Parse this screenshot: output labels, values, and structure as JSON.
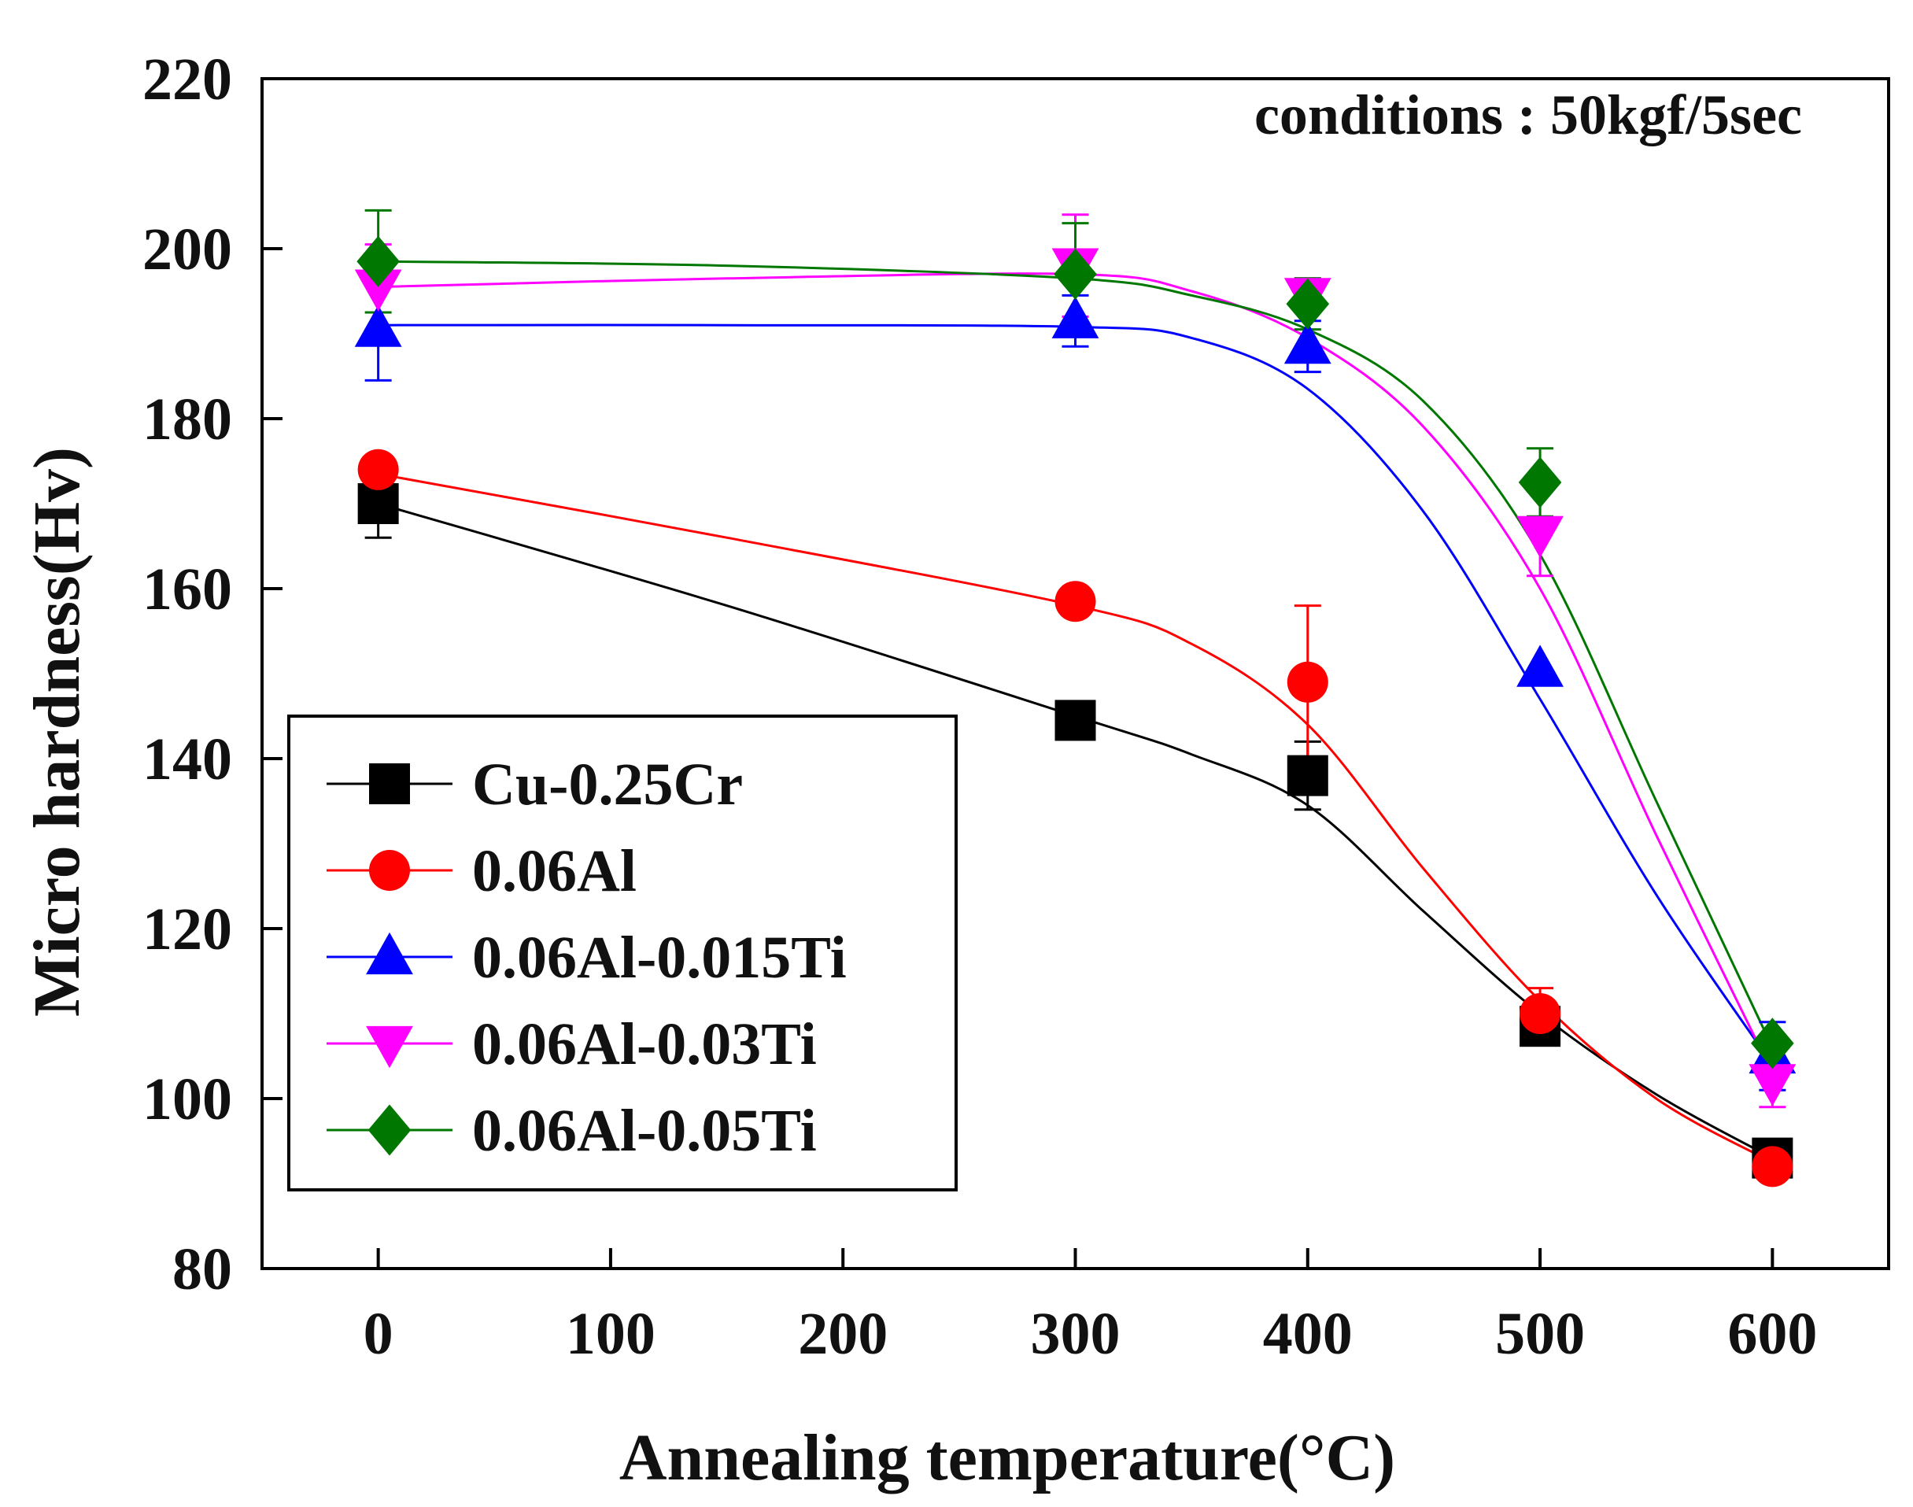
{
  "chart_data": {
    "type": "line",
    "title": "",
    "annotation": "conditions : 50kgf/5sec",
    "xlabel": "Annealing temperature(°C)",
    "ylabel": "Micro hardness(Hv)",
    "xlim": [
      -50,
      650
    ],
    "ylim": [
      80,
      220
    ],
    "x_ticks": [
      0,
      100,
      200,
      300,
      400,
      500,
      600
    ],
    "y_ticks": [
      80,
      100,
      120,
      140,
      160,
      180,
      200,
      220
    ],
    "x_tick_labels": [
      "0",
      "100",
      "200",
      "300",
      "400",
      "500",
      "600"
    ],
    "y_tick_labels": [
      "80",
      "100",
      "120",
      "140",
      "160",
      "180",
      "200",
      "220"
    ],
    "grid": false,
    "legend_position": "bottom-left",
    "x": [
      0,
      300,
      400,
      500,
      600
    ],
    "series": [
      {
        "name": "Cu-0.25Cr",
        "color": "#000000",
        "marker": "square",
        "values": [
          170,
          144.5,
          138,
          108.5,
          93
        ],
        "errors": [
          4,
          0,
          4,
          0,
          0
        ],
        "curve": [
          [
            0,
            170
          ],
          [
            150,
            158
          ],
          [
            300,
            145
          ],
          [
            350,
            140.5
          ],
          [
            400,
            134.5
          ],
          [
            450,
            122
          ],
          [
            500,
            110
          ],
          [
            550,
            100.5
          ],
          [
            600,
            93
          ]
        ]
      },
      {
        "name": "0.06Al",
        "color": "#ff0000",
        "marker": "circle",
        "values": [
          174,
          158.5,
          149,
          110,
          92
        ],
        "errors": [
          0,
          0,
          9,
          3,
          0
        ],
        "curve": [
          [
            0,
            173.5
          ],
          [
            150,
            166
          ],
          [
            300,
            158
          ],
          [
            350,
            153.5
          ],
          [
            400,
            144
          ],
          [
            450,
            127
          ],
          [
            500,
            111.5
          ],
          [
            550,
            100
          ],
          [
            600,
            92.5
          ]
        ]
      },
      {
        "name": "0.06Al-0.015Ti",
        "color": "#0000ff",
        "marker": "triangle-up",
        "values": [
          190.5,
          191.5,
          188.5,
          150.5,
          105
        ],
        "errors": [
          6,
          3,
          3,
          0,
          4
        ],
        "curve": [
          [
            0,
            191
          ],
          [
            150,
            191
          ],
          [
            300,
            190.8
          ],
          [
            350,
            189.5
          ],
          [
            400,
            183.5
          ],
          [
            450,
            169
          ],
          [
            500,
            147
          ],
          [
            550,
            124
          ],
          [
            600,
            104
          ]
        ]
      },
      {
        "name": "0.06Al-0.03Ti",
        "color": "#ff00ff",
        "marker": "triangle-down",
        "values": [
          195.5,
          198,
          194.5,
          166.5,
          102
        ],
        "errors": [
          5,
          6,
          2,
          5,
          3
        ],
        "curve": [
          [
            0,
            195.5
          ],
          [
            150,
            196.5
          ],
          [
            300,
            197
          ],
          [
            350,
            195
          ],
          [
            400,
            189.5
          ],
          [
            450,
            179
          ],
          [
            500,
            160
          ],
          [
            550,
            131
          ],
          [
            600,
            103
          ]
        ]
      },
      {
        "name": "0.06Al-0.05Ti",
        "color": "#007700",
        "marker": "diamond",
        "values": [
          198.5,
          197,
          193.5,
          172.5,
          106.5
        ],
        "errors": [
          6,
          6,
          3,
          4,
          0
        ],
        "curve": [
          [
            0,
            198.5
          ],
          [
            150,
            198
          ],
          [
            300,
            196.5
          ],
          [
            350,
            194.5
          ],
          [
            400,
            190.5
          ],
          [
            450,
            182
          ],
          [
            500,
            164
          ],
          [
            550,
            135
          ],
          [
            600,
            106
          ]
        ]
      }
    ]
  }
}
